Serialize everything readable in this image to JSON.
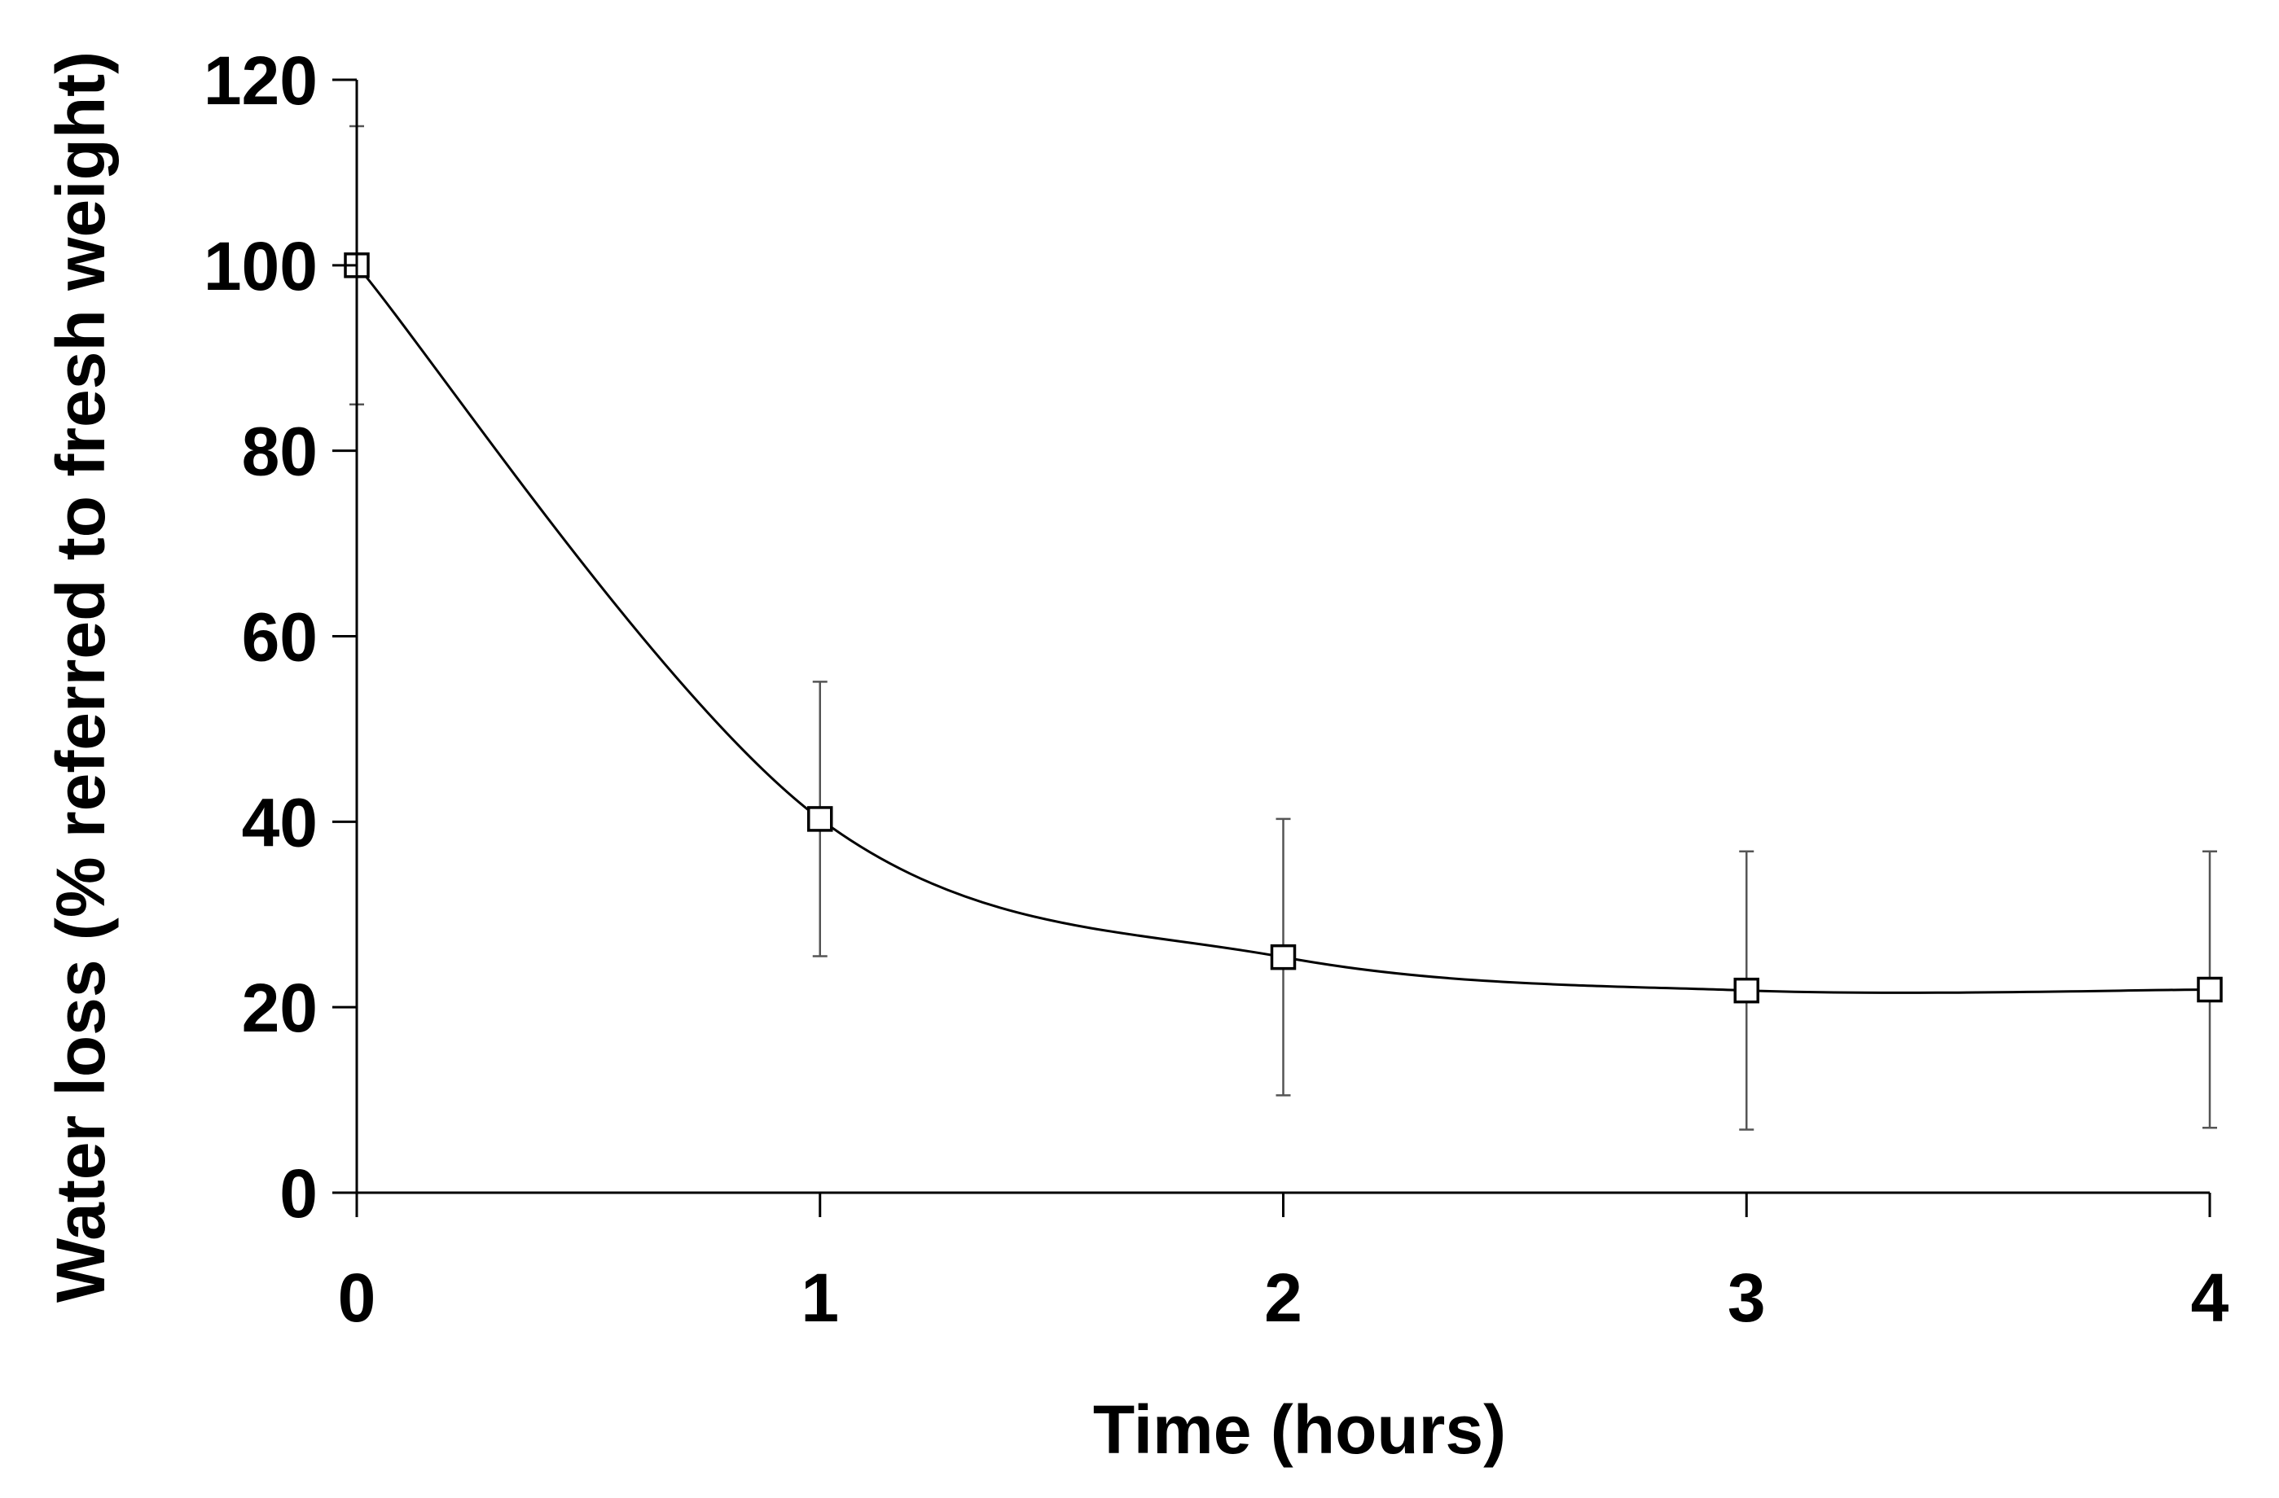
{
  "chart_data": {
    "type": "line",
    "title": "",
    "xlabel": "Time (hours)",
    "ylabel": "Water loss (% referred to fresh weight)",
    "xlim": [
      0,
      4
    ],
    "ylim": [
      0,
      120
    ],
    "x_ticks": [
      0,
      1,
      2,
      3,
      4
    ],
    "x_tick_labels": [
      "0",
      "1",
      "2",
      "3",
      "4"
    ],
    "y_ticks": [
      0,
      20,
      40,
      60,
      80,
      100,
      120
    ],
    "y_tick_labels": [
      "0",
      "20",
      "40",
      "60",
      "80",
      "100",
      "120"
    ],
    "grid": false,
    "legend": "none",
    "smoothed_line": true,
    "marker": "open-square",
    "series": [
      {
        "x": [
          0,
          1,
          2,
          3,
          4
        ],
        "y": [
          100,
          40.3,
          25.4,
          21.8,
          21.9
        ],
        "error": [
          15,
          14.8,
          14.9,
          15.0,
          14.9
        ],
        "color": "#000000"
      }
    ]
  }
}
